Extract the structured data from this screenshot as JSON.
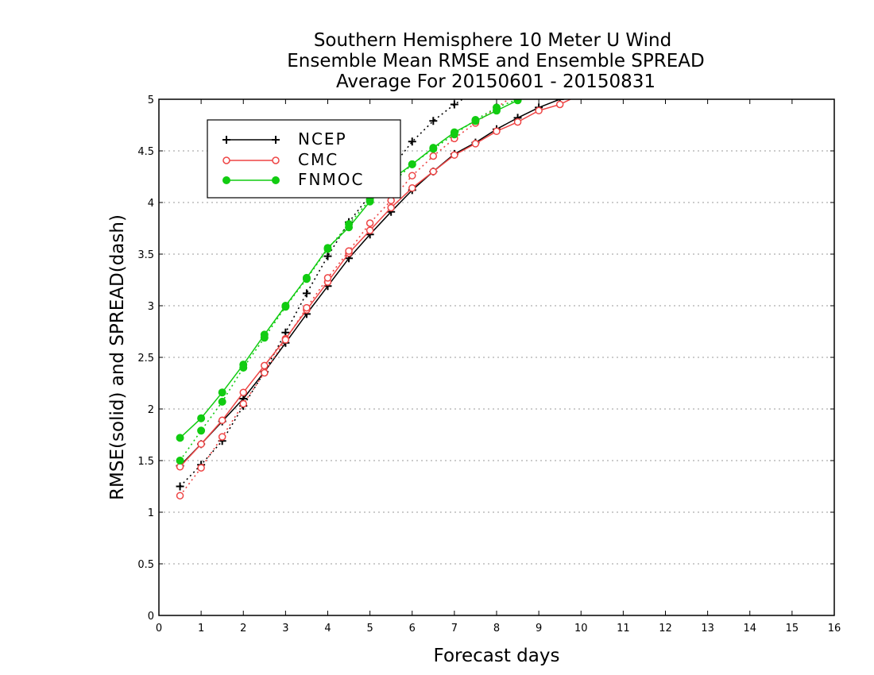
{
  "chart_data": {
    "type": "line",
    "title_lines": [
      "Southern Hemisphere 10 Meter U Wind",
      "Ensemble Mean RMSE and Ensemble SPREAD",
      "Average For 20150601 - 20150831"
    ],
    "xlabel": "Forecast days",
    "ylabel": "RMSE(solid) and SPREAD(dash)",
    "xlim": [
      0,
      16
    ],
    "ylim": [
      0,
      5
    ],
    "xticks": [
      0,
      1,
      2,
      3,
      4,
      5,
      6,
      7,
      8,
      9,
      10,
      11,
      12,
      13,
      14,
      15,
      16
    ],
    "yticks": [
      0,
      0.5,
      1,
      1.5,
      2,
      2.5,
      3,
      3.5,
      4,
      4.5,
      5
    ],
    "ytick_labels": [
      "0",
      "0.5",
      "1",
      "1.5",
      "2",
      "2.5",
      "3",
      "3.5",
      "4",
      "4.5",
      "5"
    ],
    "grid": "horizontal dotted",
    "legend_placement": "top-left",
    "legend": [
      "NCEP",
      "CMC",
      "FNMOC"
    ],
    "series": [
      {
        "name": "NCEP",
        "metric": "RMSE",
        "style": "solid",
        "marker": "plus",
        "color": "#000000",
        "x": [
          0.5,
          1,
          1.5,
          2,
          2.5,
          3,
          3.5,
          4,
          4.5,
          5,
          5.5,
          6,
          6.5,
          7,
          7.5,
          8,
          8.5,
          9,
          9.5,
          10
        ],
        "y": [
          1.45,
          1.66,
          1.88,
          2.1,
          2.36,
          2.64,
          2.92,
          3.19,
          3.46,
          3.69,
          3.91,
          4.12,
          4.3,
          4.47,
          4.58,
          4.71,
          4.82,
          4.92,
          5.0,
          5.08
        ]
      },
      {
        "name": "NCEP",
        "metric": "SPREAD",
        "style": "dash",
        "marker": "plus",
        "color": "#000000",
        "x": [
          0.5,
          1,
          1.5,
          2,
          2.5,
          3,
          3.5,
          4,
          4.5,
          5,
          5.5,
          6,
          6.5,
          7,
          7.5
        ],
        "y": [
          1.25,
          1.46,
          1.69,
          2.03,
          2.36,
          2.74,
          3.12,
          3.48,
          3.81,
          4.07,
          4.33,
          4.59,
          4.79,
          4.95,
          5.08
        ]
      },
      {
        "name": "CMC",
        "metric": "RMSE",
        "style": "solid",
        "marker": "circle",
        "color": "#ee4444",
        "x": [
          0.5,
          1,
          1.5,
          2,
          2.5,
          3,
          3.5,
          4,
          4.5,
          5,
          5.5,
          6,
          6.5,
          7,
          7.5,
          8,
          8.5,
          9,
          9.5,
          10
        ],
        "y": [
          1.44,
          1.66,
          1.89,
          2.16,
          2.42,
          2.68,
          2.96,
          3.23,
          3.51,
          3.73,
          3.95,
          4.14,
          4.3,
          4.46,
          4.57,
          4.69,
          4.78,
          4.89,
          4.95,
          5.05
        ]
      },
      {
        "name": "CMC",
        "metric": "SPREAD",
        "style": "dash",
        "marker": "circle",
        "color": "#ee4444",
        "x": [
          0.5,
          1,
          1.5,
          2,
          2.5,
          3,
          3.5,
          4,
          4.5,
          5,
          5.5,
          6,
          6.5,
          7,
          7.5,
          8,
          8.5
        ],
        "y": [
          1.16,
          1.43,
          1.73,
          2.05,
          2.35,
          2.67,
          2.98,
          3.27,
          3.53,
          3.8,
          4.02,
          4.26,
          4.45,
          4.62,
          4.77,
          4.92,
          5.06
        ]
      },
      {
        "name": "FNMOC",
        "metric": "RMSE",
        "style": "solid",
        "marker": "filled-circle",
        "color": "#11cc11",
        "x": [
          0.5,
          1,
          1.5,
          2,
          2.5,
          3,
          3.5,
          4,
          4.5,
          5,
          5.5,
          6,
          6.5,
          7,
          7.5,
          8,
          8.5,
          9
        ],
        "y": [
          1.72,
          1.91,
          2.16,
          2.43,
          2.72,
          3.0,
          3.27,
          3.56,
          3.76,
          4.01,
          4.22,
          4.37,
          4.53,
          4.68,
          4.79,
          4.89,
          4.99,
          5.08
        ]
      },
      {
        "name": "FNMOC",
        "metric": "SPREAD",
        "style": "dash",
        "marker": "filled-circle",
        "color": "#11cc11",
        "x": [
          0.5,
          1,
          1.5,
          2,
          2.5,
          3,
          3.5,
          4,
          4.5,
          5,
          5.5,
          6,
          6.5,
          7,
          7.5,
          8,
          8.5,
          9
        ],
        "y": [
          1.5,
          1.79,
          2.07,
          2.4,
          2.69,
          2.99,
          3.26,
          3.55,
          3.79,
          4.03,
          4.18,
          4.37,
          4.52,
          4.66,
          4.8,
          4.92,
          5.0,
          5.08
        ]
      }
    ]
  }
}
